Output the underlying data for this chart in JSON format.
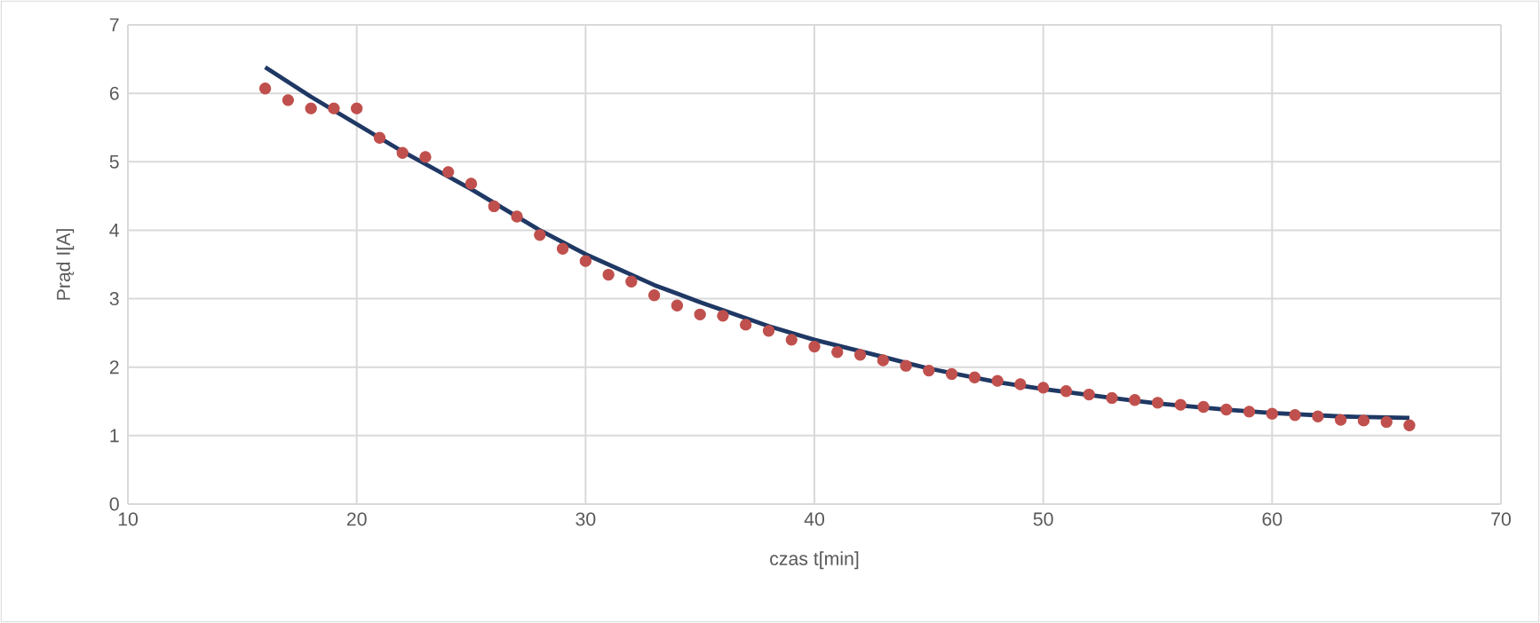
{
  "chart_data": {
    "type": "scatter",
    "xlabel": "czas t[min]",
    "ylabel": "Prąd I[A]",
    "xlim": [
      10,
      70
    ],
    "xticks": [
      10,
      20,
      30,
      40,
      50,
      60,
      70
    ],
    "ylim": [
      0,
      7
    ],
    "yticks": [
      0,
      1,
      2,
      3,
      4,
      5,
      6,
      7
    ],
    "grid": true,
    "marker": "circle",
    "series": [
      {
        "color": "#c0504d",
        "x": [
          16,
          17,
          18,
          19,
          20,
          21,
          22,
          23,
          24,
          25,
          26,
          27,
          28,
          29,
          30,
          31,
          32,
          33,
          34,
          35,
          36,
          37,
          38,
          39,
          40,
          41,
          42,
          43,
          44,
          45,
          46,
          47,
          48,
          49,
          50,
          51,
          52,
          53,
          54,
          55,
          56,
          57,
          58,
          59,
          60,
          61,
          62,
          63,
          64,
          65,
          66
        ],
        "values": [
          6.07,
          5.9,
          5.78,
          5.78,
          5.78,
          5.35,
          5.13,
          5.07,
          4.85,
          4.68,
          4.35,
          4.2,
          3.93,
          3.73,
          3.55,
          3.35,
          3.25,
          3.05,
          2.9,
          2.77,
          2.75,
          2.62,
          2.53,
          2.4,
          2.3,
          2.22,
          2.18,
          2.1,
          2.02,
          1.95,
          1.9,
          1.85,
          1.8,
          1.75,
          1.7,
          1.65,
          1.6,
          1.55,
          1.52,
          1.48,
          1.45,
          1.42,
          1.38,
          1.35,
          1.32,
          1.3,
          1.28,
          1.23,
          1.22,
          1.2,
          1.15
        ]
      },
      {
        "type": "line",
        "color": "#1f3864",
        "marker": "none",
        "line_style": "solid",
        "x": [
          16,
          18,
          20,
          22,
          25,
          28,
          30,
          33,
          35,
          38,
          40,
          43,
          45,
          48,
          50,
          53,
          55,
          58,
          60,
          63,
          66
        ],
        "values": [
          6.38,
          5.95,
          5.55,
          5.15,
          4.6,
          4.0,
          3.65,
          3.2,
          2.95,
          2.6,
          2.4,
          2.15,
          1.98,
          1.78,
          1.68,
          1.55,
          1.47,
          1.38,
          1.33,
          1.28,
          1.26
        ]
      }
    ]
  }
}
